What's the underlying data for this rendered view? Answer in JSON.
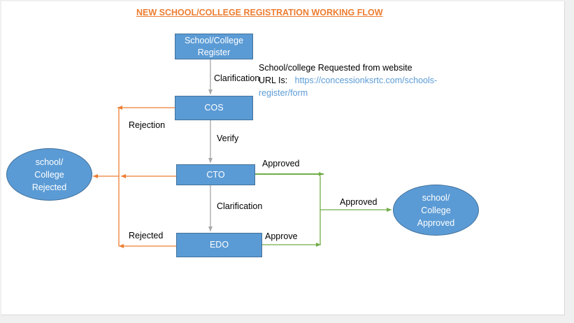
{
  "title": "NEW SCHOOL/COLLEGE REGISTRATION WORKING FLOW",
  "nodes": {
    "register": {
      "line1": "School/College",
      "line2": "Register"
    },
    "cos": "COS",
    "cto": "CTO",
    "edo": "EDO",
    "rejected": {
      "line1": "school/",
      "line2": "College",
      "line3": "Rejected"
    },
    "approved": {
      "line1": "school/",
      "line2": "College",
      "line3": "Approved"
    }
  },
  "edges": {
    "register_cos": "Clarification",
    "cos_cto": "Verify",
    "cto_edo": "Clarification",
    "cos_reject": "Rejection",
    "edo_reject": "Rejected",
    "cto_approve": "Approved",
    "edo_approve": "Approve",
    "to_approved": "Approved"
  },
  "note": {
    "line1": "School/college Requested from website",
    "url_prefix": "URL Is:",
    "url_part1": "https://concessionksrtc.com/schools-",
    "url_part2": "register/form"
  },
  "colors": {
    "box_fill": "#5b9bd5",
    "box_border": "#41719c",
    "title": "#ed7d31",
    "reject_line": "#ed7d31",
    "approve_line": "#70ad47",
    "neutral_line": "#a6a6a6",
    "link": "#5b9bd5"
  }
}
